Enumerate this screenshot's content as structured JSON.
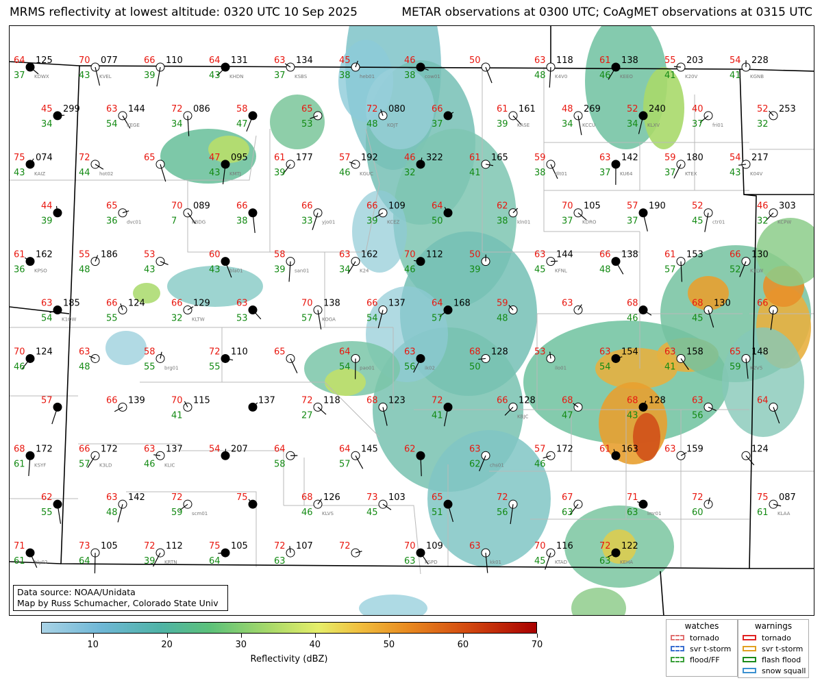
{
  "title_left": "MRMS reflectivity at lowest altitude: 0320 UTC 10 Sep 2025",
  "title_right": "METAR observations at 0300 UTC; CoAgMET observations at 0315 UTC",
  "credit": {
    "line1": "Data source: NOAA/Unidata",
    "line2": "Map by Russ Schumacher, Colorado State Univ"
  },
  "colorbar": {
    "label": "Reflectivity (dBZ)",
    "ticks": [
      "10",
      "20",
      "30",
      "40",
      "50",
      "60",
      "70"
    ],
    "min": 3,
    "max": 70
  },
  "legend_watches": {
    "title": "watches",
    "items": [
      {
        "label": "tornado",
        "color": "#e07070"
      },
      {
        "label": "svr t-storm",
        "color": "#3a6fd0"
      },
      {
        "label": "flood/FF",
        "color": "#3aa03a"
      }
    ]
  },
  "legend_warnings": {
    "title": "warnings",
    "items": [
      {
        "label": "tornado",
        "color": "#e02020"
      },
      {
        "label": "svr t-storm",
        "color": "#e0a020"
      },
      {
        "label": "flash flood",
        "color": "#1a8a1a"
      },
      {
        "label": "snow squall",
        "color": "#3a90d0"
      }
    ]
  },
  "colors": {
    "temperature": "#e8170f",
    "dewpoint": "#138a13",
    "pressure": "#000000",
    "station_id": "#777777",
    "county_border": "#b9b9b9",
    "state_border": "#000000"
  },
  "stations": [
    {
      "t": "64",
      "td": "37",
      "p": "125",
      "id": "KDWX"
    },
    {
      "t": "70",
      "td": "43",
      "p": "077",
      "id": "KVEL"
    },
    {
      "t": "66",
      "td": "39",
      "p": "110",
      "id": ""
    },
    {
      "t": "64",
      "td": "43",
      "p": "131",
      "id": "KHDN"
    },
    {
      "t": "63",
      "td": "37",
      "p": "134",
      "id": "KSBS"
    },
    {
      "t": "45",
      "td": "38",
      "p": "",
      "id": "heb01"
    },
    {
      "t": "46",
      "td": "38",
      "p": "",
      "id": "cow01"
    },
    {
      "t": "50",
      "td": "",
      "p": "",
      "id": ""
    },
    {
      "t": "63",
      "td": "48",
      "p": "118",
      "id": "K4V0"
    },
    {
      "t": "61",
      "td": "46",
      "p": "138",
      "id": "KEEO"
    },
    {
      "t": "55",
      "td": "41",
      "p": "203",
      "id": "K20V"
    },
    {
      "t": "54",
      "td": "41",
      "p": "228",
      "id": "KGNB"
    },
    {
      "t": "45",
      "td": "34",
      "p": "299",
      "id": ""
    },
    {
      "t": "63",
      "td": "54",
      "p": "144",
      "id": "KEGE"
    },
    {
      "t": "72",
      "td": "34",
      "p": "086",
      "id": ""
    },
    {
      "t": "58",
      "td": "47",
      "p": "",
      "id": ""
    },
    {
      "t": "65",
      "td": "53",
      "p": "",
      "id": ""
    },
    {
      "t": "72",
      "td": "48",
      "p": "080",
      "id": "KOJT"
    },
    {
      "t": "66",
      "td": "37",
      "p": "",
      "id": ""
    },
    {
      "t": "61",
      "td": "39",
      "p": "161",
      "id": "KASE"
    },
    {
      "t": "48",
      "td": "34",
      "p": "269",
      "id": "KCCU"
    },
    {
      "t": "52",
      "td": "34",
      "p": "240",
      "id": "KLXV"
    },
    {
      "t": "40",
      "td": "37",
      "p": "",
      "id": "fri01"
    },
    {
      "t": "52",
      "td": "32",
      "p": "253",
      "id": ""
    },
    {
      "t": "75",
      "td": "43",
      "p": "074",
      "id": "KAIZ"
    },
    {
      "t": "72",
      "td": "44",
      "p": "",
      "id": "hot02"
    },
    {
      "t": "65",
      "td": "",
      "p": "",
      "id": ""
    },
    {
      "t": "47",
      "td": "43",
      "p": "095",
      "id": "KMTJ"
    },
    {
      "t": "61",
      "td": "39",
      "p": "177",
      "id": ""
    },
    {
      "t": "57",
      "td": "46",
      "p": "192",
      "id": "KGUC"
    },
    {
      "t": "46",
      "td": "32",
      "p": "322",
      "id": ""
    },
    {
      "t": "61",
      "td": "41",
      "p": "165",
      "id": ""
    },
    {
      "t": "59",
      "td": "38",
      "p": "",
      "id": "dlt01"
    },
    {
      "t": "63",
      "td": "37",
      "p": "142",
      "id": "KU64"
    },
    {
      "t": "59",
      "td": "37",
      "p": "180",
      "id": "KTEX"
    },
    {
      "t": "54",
      "td": "43",
      "p": "217",
      "id": "K04V"
    },
    {
      "t": "44",
      "td": "39",
      "p": "",
      "id": ""
    },
    {
      "t": "65",
      "td": "36",
      "p": "",
      "id": "dvc01"
    },
    {
      "t": "70",
      "td": "7",
      "p": "089",
      "id": "KBDG"
    },
    {
      "t": "66",
      "td": "38",
      "p": "",
      "id": ""
    },
    {
      "t": "66",
      "td": "33",
      "p": "",
      "id": "yjo01"
    },
    {
      "t": "66",
      "td": "39",
      "p": "109",
      "id": "KCEZ"
    },
    {
      "t": "64",
      "td": "50",
      "p": "",
      "id": ""
    },
    {
      "t": "62",
      "td": "38",
      "p": "",
      "id": "kln01"
    },
    {
      "t": "70",
      "td": "37",
      "p": "105",
      "id": "KDRO"
    },
    {
      "t": "57",
      "td": "37",
      "p": "190",
      "id": ""
    },
    {
      "t": "52",
      "td": "45",
      "p": "",
      "id": "ctr01"
    },
    {
      "t": "46",
      "td": "32",
      "p": "303",
      "id": "KCPW"
    },
    {
      "t": "61",
      "td": "36",
      "p": "162",
      "id": "KPSO"
    },
    {
      "t": "55",
      "td": "48",
      "p": "186",
      "id": ""
    },
    {
      "t": "53",
      "td": "43",
      "p": "",
      "id": ""
    },
    {
      "t": "60",
      "td": "43",
      "p": "",
      "id": "bla01"
    },
    {
      "t": "58",
      "td": "39",
      "p": "",
      "id": "san01"
    },
    {
      "t": "63",
      "td": "34",
      "p": "162",
      "id": "K24"
    },
    {
      "t": "70",
      "td": "46",
      "p": "112",
      "id": ""
    },
    {
      "t": "50",
      "td": "39",
      "p": "",
      "id": ""
    },
    {
      "t": "63",
      "td": "45",
      "p": "144",
      "id": "KFNL"
    },
    {
      "t": "66",
      "td": "48",
      "p": "138",
      "id": ""
    },
    {
      "t": "61",
      "td": "57",
      "p": "153",
      "id": ""
    },
    {
      "t": "66",
      "td": "52",
      "p": "130",
      "id": "K1LW"
    },
    {
      "t": "63",
      "td": "54",
      "p": "185",
      "id": "K1OW"
    },
    {
      "t": "66",
      "td": "55",
      "p": "124",
      "id": ""
    },
    {
      "t": "66",
      "td": "32",
      "p": "129",
      "id": "KLTW"
    },
    {
      "t": "63",
      "td": "53",
      "p": "",
      "id": ""
    },
    {
      "t": "70",
      "td": "57",
      "p": "138",
      "id": "KOGA"
    },
    {
      "t": "66",
      "td": "54",
      "p": "137",
      "id": ""
    },
    {
      "t": "64",
      "td": "57",
      "p": "168",
      "id": ""
    },
    {
      "t": "59",
      "td": "48",
      "p": "",
      "id": ""
    },
    {
      "t": "63",
      "td": "",
      "p": "",
      "id": ""
    },
    {
      "t": "68",
      "td": "46",
      "p": "",
      "id": ""
    },
    {
      "t": "68",
      "td": "45",
      "p": "130",
      "id": ""
    },
    {
      "t": "66",
      "td": "",
      "p": "",
      "id": ""
    },
    {
      "t": "70",
      "td": "46",
      "p": "124",
      "id": ""
    },
    {
      "t": "63",
      "td": "48",
      "p": "",
      "id": ""
    },
    {
      "t": "58",
      "td": "55",
      "p": "",
      "id": "brg01"
    },
    {
      "t": "72",
      "td": "55",
      "p": "110",
      "id": ""
    },
    {
      "t": "65",
      "td": "",
      "p": "",
      "id": ""
    },
    {
      "t": "64",
      "td": "54",
      "p": "",
      "id": "pao01"
    },
    {
      "t": "63",
      "td": "56",
      "p": "",
      "id": "ik02"
    },
    {
      "t": "68",
      "td": "50",
      "p": "128",
      "id": ""
    },
    {
      "t": "53",
      "td": "",
      "p": "",
      "id": "ilo01"
    },
    {
      "t": "63",
      "td": "54",
      "p": "154",
      "id": ""
    },
    {
      "t": "63",
      "td": "41",
      "p": "158",
      "id": ""
    },
    {
      "t": "65",
      "td": "59",
      "p": "148",
      "id": "K2V5"
    },
    {
      "t": "57",
      "td": "",
      "p": "",
      "id": ""
    },
    {
      "t": "66",
      "td": "",
      "p": "139",
      "id": ""
    },
    {
      "t": "70",
      "td": "41",
      "p": "115",
      "id": ""
    },
    {
      "t": "",
      "td": "",
      "p": "137",
      "id": ""
    },
    {
      "t": "72",
      "td": "27",
      "p": "118",
      "id": ""
    },
    {
      "t": "68",
      "td": "",
      "p": "123",
      "id": ""
    },
    {
      "t": "72",
      "td": "41",
      "p": "",
      "id": ""
    },
    {
      "t": "66",
      "td": "",
      "p": "128",
      "id": "KBJC"
    },
    {
      "t": "68",
      "td": "47",
      "p": "",
      "id": ""
    },
    {
      "t": "68",
      "td": "43",
      "p": "128",
      "id": ""
    },
    {
      "t": "63",
      "td": "56",
      "p": "",
      "id": ""
    },
    {
      "t": "64",
      "td": "",
      "p": "",
      "id": ""
    },
    {
      "t": "68",
      "td": "61",
      "p": "172",
      "id": "KSYF"
    },
    {
      "t": "66",
      "td": "57",
      "p": "172",
      "id": "K3LD"
    },
    {
      "t": "63",
      "td": "46",
      "p": "137",
      "id": "KLIC"
    },
    {
      "t": "54",
      "td": "",
      "p": "207",
      "id": ""
    },
    {
      "t": "64",
      "td": "58",
      "p": "",
      "id": ""
    },
    {
      "t": "64",
      "td": "57",
      "p": "145",
      "id": ""
    },
    {
      "t": "62",
      "td": "",
      "p": "",
      "id": ""
    },
    {
      "t": "63",
      "td": "62",
      "p": "",
      "id": "chs01"
    },
    {
      "t": "57",
      "td": "46",
      "p": "172",
      "id": ""
    },
    {
      "t": "61",
      "td": "",
      "p": "163",
      "id": ""
    },
    {
      "t": "63",
      "td": "",
      "p": "159",
      "id": ""
    },
    {
      "t": "",
      "td": "",
      "p": "124",
      "id": ""
    },
    {
      "t": "62",
      "td": "55",
      "p": "",
      "id": ""
    },
    {
      "t": "63",
      "td": "48",
      "p": "142",
      "id": ""
    },
    {
      "t": "72",
      "td": "59",
      "p": "",
      "id": "scm01"
    },
    {
      "t": "75",
      "td": "",
      "p": "",
      "id": ""
    },
    {
      "t": "68",
      "td": "46",
      "p": "126",
      "id": "KLVS"
    },
    {
      "t": "73",
      "td": "45",
      "p": "103",
      "id": ""
    },
    {
      "t": "65",
      "td": "51",
      "p": "",
      "id": ""
    },
    {
      "t": "72",
      "td": "56",
      "p": "",
      "id": ""
    },
    {
      "t": "67",
      "td": "63",
      "p": "",
      "id": ""
    },
    {
      "t": "71",
      "td": "63",
      "p": "",
      "id": "lmr01"
    },
    {
      "t": "72",
      "td": "60",
      "p": "",
      "id": ""
    },
    {
      "t": "75",
      "td": "61",
      "p": "087",
      "id": "KLAA"
    },
    {
      "t": "71",
      "td": "61",
      "p": "",
      "id": "hly02"
    },
    {
      "t": "73",
      "td": "64",
      "p": "105",
      "id": ""
    },
    {
      "t": "72",
      "td": "39",
      "p": "112",
      "id": "KRTN"
    },
    {
      "t": "75",
      "td": "64",
      "p": "105",
      "id": ""
    },
    {
      "t": "72",
      "td": "63",
      "p": "107",
      "id": ""
    },
    {
      "t": "72",
      "td": "",
      "p": "",
      "id": ""
    },
    {
      "t": "70",
      "td": "63",
      "p": "109",
      "id": "KSPD"
    },
    {
      "t": "63",
      "td": "",
      "p": "",
      "id": "kk01"
    },
    {
      "t": "70",
      "td": "45",
      "p": "116",
      "id": "KTAD"
    },
    {
      "t": "72",
      "td": "63",
      "p": "122",
      "id": "KEHA"
    }
  ]
}
